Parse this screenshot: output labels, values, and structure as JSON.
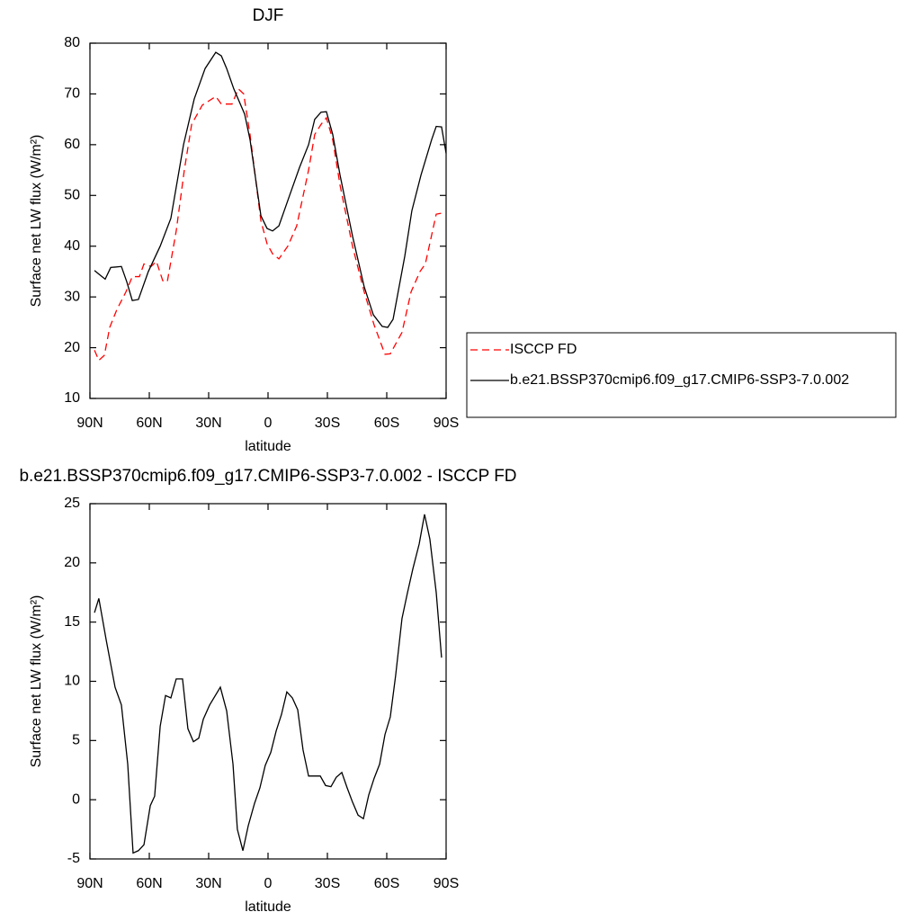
{
  "chart_data": [
    {
      "type": "line",
      "title": "DJF",
      "xlabel": "latitude",
      "ylabel": "Surface net LW flux (W/m²)",
      "xlim": [
        90,
        -90
      ],
      "xticks": [
        {
          "value": 90,
          "label": "90N"
        },
        {
          "value": 60,
          "label": "60N"
        },
        {
          "value": 30,
          "label": "30N"
        },
        0,
        {
          "value": -30,
          "label": "30S"
        },
        {
          "value": -60,
          "label": "60S"
        },
        {
          "value": -90,
          "label": "90S"
        }
      ],
      "ylim": [
        10,
        80
      ],
      "yticks": [
        10,
        20,
        30,
        40,
        50,
        60,
        70,
        80
      ],
      "legend": "right",
      "series": [
        {
          "name": "ISCCP FD",
          "color": "#ff0000",
          "line_style": "dashed",
          "x": [
            87.7,
            85.5,
            82.7,
            80,
            76.4,
            71.8,
            68.6,
            65,
            62.7,
            59.1,
            56.4,
            53.2,
            50.9,
            46.4,
            42.3,
            38.6,
            33.2,
            26.4,
            23.6,
            18.2,
            15,
            12.3,
            9.1,
            3.6,
            0.5,
            -2.3,
            -5.5,
            -10,
            -14.5,
            -20.5,
            -23.6,
            -26.8,
            -29.5,
            -32.7,
            -36.4,
            -42.7,
            -48.6,
            -53.6,
            -59.1,
            -61.8,
            -67.7,
            -72.3,
            -76.8,
            -79.5,
            -85,
            -87.7
          ],
          "values": [
            19.5,
            17.5,
            18.5,
            24,
            27.5,
            31,
            34,
            34,
            36.5,
            36,
            37,
            33.2,
            33,
            43,
            55,
            64,
            67.8,
            69.5,
            68,
            68,
            71,
            70,
            62,
            45,
            40.5,
            38.5,
            37.5,
            40,
            44,
            55,
            62,
            64,
            65.3,
            61,
            52,
            40,
            31,
            24.5,
            18.7,
            18.8,
            23,
            31,
            35,
            36.5,
            46.3,
            46.5
          ]
        },
        {
          "name": "b.e21.BSSP370cmip6.f09_g17.CMIP6-SSP3-7.0.002",
          "color": "#000000",
          "line_style": "solid",
          "x": [
            87.7,
            85.5,
            82.3,
            79.5,
            74.1,
            71.4,
            68.6,
            65.5,
            60.5,
            54.5,
            49.1,
            42.7,
            37.3,
            31.8,
            26.4,
            23.6,
            20.9,
            17.3,
            11.8,
            9.1,
            3.6,
            0.5,
            -2.3,
            -5.5,
            -10.9,
            -15.9,
            -20.5,
            -23.6,
            -26.8,
            -29.5,
            -32.7,
            -36.4,
            -42.7,
            -48.6,
            -53.2,
            -57.7,
            -60.5,
            -63.2,
            -69.1,
            -72.7,
            -77.3,
            -82.7,
            -85,
            -87.7,
            -90
          ],
          "values": [
            35.2,
            34.5,
            33.5,
            35.8,
            36,
            33,
            29.3,
            29.5,
            35,
            40,
            45.5,
            60,
            69,
            75,
            78.2,
            77.5,
            75,
            71,
            66,
            61,
            46,
            43.5,
            43,
            44,
            50,
            55.5,
            60,
            65,
            66.4,
            66.5,
            62,
            54,
            42,
            32,
            26.5,
            24.2,
            24,
            25.6,
            38,
            47,
            54,
            61,
            63.6,
            63.5,
            58.3
          ]
        }
      ]
    },
    {
      "type": "line",
      "title": "b.e21.BSSP370cmip6.f09_g17.CMIP6-SSP3-7.0.002 - ISCCP FD",
      "xlabel": "latitude",
      "ylabel": "Surface net LW flux (W/m²)",
      "xlim": [
        90,
        -90
      ],
      "xticks": [
        {
          "value": 90,
          "label": "90N"
        },
        {
          "value": 60,
          "label": "60N"
        },
        {
          "value": 30,
          "label": "30N"
        },
        0,
        {
          "value": -30,
          "label": "30S"
        },
        {
          "value": -60,
          "label": "60S"
        },
        {
          "value": -90,
          "label": "90S"
        }
      ],
      "ylim": [
        -5,
        25
      ],
      "yticks": [
        -5,
        0,
        5,
        10,
        15,
        20,
        25
      ],
      "series": [
        {
          "color": "#000000",
          "line_style": "solid",
          "x": [
            87.7,
            85.5,
            81.8,
            77.3,
            74.1,
            70.9,
            68.2,
            65.5,
            62.7,
            59.5,
            57.3,
            54.5,
            51.8,
            49.1,
            46.4,
            43.2,
            40.5,
            37.7,
            35,
            32.7,
            29.5,
            24.1,
            20.9,
            17.7,
            15.5,
            12.7,
            10,
            6.8,
            4.1,
            1.4,
            -1.4,
            -4.1,
            -6.8,
            -9.5,
            -12.3,
            -15,
            -17.7,
            -20.5,
            -23.2,
            -26.4,
            -29.1,
            -31.8,
            -34.5,
            -37.3,
            -40,
            -42.7,
            -45.5,
            -48.2,
            -50.9,
            -53.6,
            -56.4,
            -59.1,
            -61.8,
            -64.5,
            -67.7,
            -70.5,
            -73.2,
            -76.4,
            -79.1,
            -81.8,
            -85,
            -87.7
          ],
          "values": [
            15.8,
            17,
            13.5,
            9.5,
            8,
            3,
            -4.5,
            -4.3,
            -3.8,
            -0.5,
            0.3,
            6.2,
            8.8,
            8.6,
            10.2,
            10.2,
            6,
            4.9,
            5.2,
            6.8,
            8,
            9.5,
            7.5,
            3,
            -2.5,
            -4.3,
            -2.2,
            -0.3,
            1,
            2.9,
            4,
            5.8,
            7.2,
            9.1,
            8.6,
            7.6,
            4.2,
            2,
            2,
            2,
            1.2,
            1.1,
            1.9,
            2.3,
            1,
            -0.2,
            -1.3,
            -1.6,
            0.4,
            1.8,
            3,
            5.5,
            7,
            10.5,
            15.3,
            17.5,
            19.5,
            21.6,
            24.1,
            22,
            17.5,
            12
          ]
        }
      ]
    }
  ]
}
